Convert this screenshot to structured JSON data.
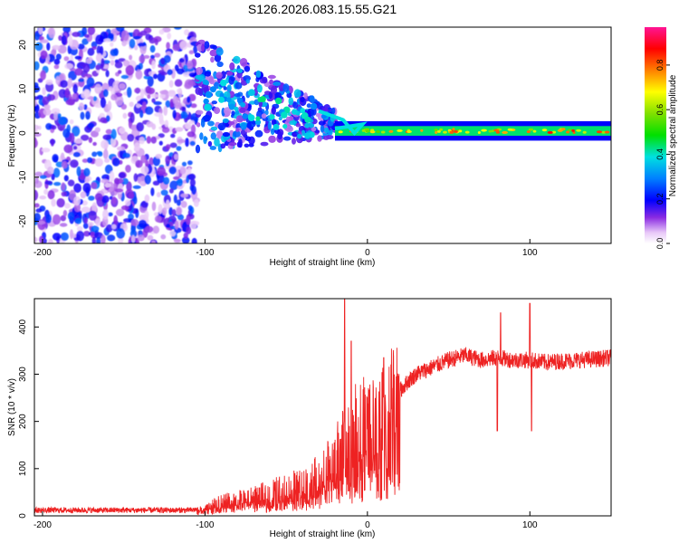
{
  "title": "S126.2026.083.15.55.G21",
  "chart_data": [
    {
      "type": "heatmap",
      "xlabel": "Height of straight line (km)",
      "ylabel": "Frequency (Hz)",
      "xlim": [
        -205,
        150
      ],
      "ylim": [
        -25,
        24
      ],
      "xticks": [
        -200,
        -100,
        0,
        100
      ],
      "yticks": [
        -20,
        -10,
        0,
        10,
        20
      ],
      "colorbar": {
        "label": "Normalized spectral amplitude",
        "range": [
          0,
          0.97
        ],
        "ticks": [
          0.0,
          0.2,
          0.4,
          0.6,
          0.8
        ]
      },
      "features": [
        {
          "x_from": -205,
          "x_to": -105,
          "description": "noise",
          "freq_range": [
            -25,
            24
          ],
          "amplitude": 0.25
        },
        {
          "x_from": -105,
          "x_to": -20,
          "description": "converging signal",
          "freq_at_start": 9,
          "freq_at_end": 2,
          "amplitude": 0.35
        },
        {
          "x_from": -20,
          "x_to": 150,
          "description": "carrier line",
          "freq": 0.5,
          "amplitude": 0.6
        }
      ]
    },
    {
      "type": "line",
      "xlabel": "Height of straight line (km)",
      "ylabel": "SNR (10 * v/v)",
      "xlim": [
        -205,
        150
      ],
      "ylim": [
        0,
        460
      ],
      "xticks": [
        -200,
        -100,
        0,
        100
      ],
      "yticks": [
        0,
        100,
        200,
        300,
        400
      ],
      "series": [
        {
          "name": "SNR",
          "color": "#ee2222",
          "envelope_x": [
            -205,
            -110,
            -100,
            -90,
            -80,
            -70,
            -60,
            -50,
            -40,
            -30,
            -20,
            -15,
            -10,
            -5,
            0,
            5,
            10,
            15,
            20,
            25,
            30,
            40,
            50,
            60,
            70,
            80,
            90,
            100,
            110,
            120,
            130,
            140,
            150
          ],
          "envelope_y": [
            12,
            12,
            15,
            30,
            35,
            40,
            50,
            60,
            65,
            85,
            120,
            150,
            170,
            190,
            195,
            185,
            215,
            240,
            265,
            285,
            300,
            315,
            330,
            340,
            330,
            335,
            330,
            330,
            325,
            328,
            330,
            332,
            335
          ],
          "spikes": [
            [
              -14,
              460
            ],
            [
              -10,
              370
            ],
            [
              -5,
              135
            ],
            [
              10,
              335
            ],
            [
              12,
              100
            ],
            [
              80,
              180
            ],
            [
              82,
              430
            ],
            [
              100,
              450
            ],
            [
              101,
              180
            ]
          ]
        }
      ]
    }
  ]
}
